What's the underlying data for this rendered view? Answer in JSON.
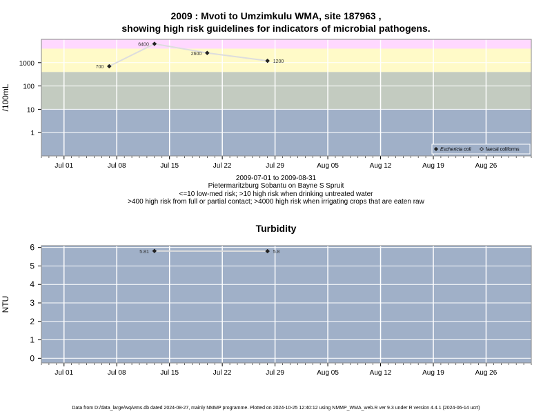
{
  "chart_data": [
    {
      "type": "scatter",
      "title": "2009 : Mvoti to Umzimkulu WMA, site 187963 ,",
      "subtitle": "showing high risk guidelines for indicators of microbial pathogens.",
      "ylabel": "/100mL",
      "yscale": "log",
      "ylim": [
        0.1,
        10000
      ],
      "yticks": [
        1,
        10,
        100,
        1000
      ],
      "ytick_labels": [
        "1",
        "10",
        "100",
        "1000"
      ],
      "xlim": [
        "2009-06-28",
        "2009-09-01"
      ],
      "xticks": [
        "2009-07-01",
        "2009-07-08",
        "2009-07-15",
        "2009-07-22",
        "2009-07-29",
        "2009-08-05",
        "2009-08-12",
        "2009-08-19",
        "2009-08-26"
      ],
      "xtick_labels": [
        "Jul 01",
        "Jul 08",
        "Jul 15",
        "Jul 22",
        "Jul 29",
        "Aug 05",
        "Aug 12",
        "Aug 19",
        "Aug 26"
      ],
      "bands": [
        {
          "from": 0.1,
          "to": 10,
          "color": "#a0b0c8"
        },
        {
          "from": 10,
          "to": 400,
          "color": "#c3cbc0"
        },
        {
          "from": 400,
          "to": 4000,
          "color": "#fffac8"
        },
        {
          "from": 4000,
          "to": 10000,
          "color": "#ffd8ff"
        }
      ],
      "series": [
        {
          "name": "Eschericia coli",
          "color": "#222222",
          "line_color": "#dddddd",
          "x": [
            "2009-07-07",
            "2009-07-13",
            "2009-07-20",
            "2009-07-28"
          ],
          "y": [
            700,
            6400,
            2600,
            1200
          ],
          "labels": [
            "700",
            "6400",
            "2600",
            "1200"
          ]
        }
      ],
      "legend": {
        "position": "bottom-right",
        "entries": [
          {
            "label": "Eschericia coli",
            "marker": "filled-diamond"
          },
          {
            "label": "faecal coliforms",
            "marker": "open-diamond"
          }
        ]
      },
      "grid": true
    },
    {
      "type": "scatter",
      "title": "Turbidity",
      "ylabel": "NTU",
      "ylim": [
        -0.25,
        6.1
      ],
      "yticks": [
        0,
        1,
        2,
        3,
        4,
        5,
        6
      ],
      "ytick_labels": [
        "0",
        "1",
        "2",
        "3",
        "4",
        "5",
        "6"
      ],
      "xlim": [
        "2009-06-28",
        "2009-09-01"
      ],
      "xticks": [
        "2009-07-01",
        "2009-07-08",
        "2009-07-15",
        "2009-07-22",
        "2009-07-29",
        "2009-08-05",
        "2009-08-12",
        "2009-08-19",
        "2009-08-26"
      ],
      "xtick_labels": [
        "Jul 01",
        "Jul 08",
        "Jul 15",
        "Jul 22",
        "Jul 29",
        "Aug 05",
        "Aug 12",
        "Aug 19",
        "Aug 26"
      ],
      "bands": [
        {
          "from": -0.25,
          "to": 6.1,
          "color": "#a0b0c8"
        }
      ],
      "series": [
        {
          "color": "#222222",
          "line_color": "#dddddd",
          "x": [
            "2009-07-13",
            "2009-07-28"
          ],
          "y": [
            5.81,
            5.8
          ],
          "labels": [
            "5.81",
            "5.8"
          ]
        }
      ],
      "grid": true
    }
  ],
  "caption": {
    "line1": "2009-07-01 to 2009-08-31",
    "line2": "Pietermaritzburg Sobantu on Bayne S Spruit",
    "line3": "<=10 low-med risk; >10 high risk when drinking untreated water",
    "line4": ">400 high risk from full or partial contact; >4000 high risk when irrigating crops that are eaten raw"
  },
  "footer": "Data from D:/data_large/wq/wms.db dated 2024-08-27, mainly NMMP programme. Plotted on 2024-10-25 12:40:12 using NMMP_WMA_web.R ver 9.3 under R version 4.4.1 (2024-06-14 ucrt)"
}
